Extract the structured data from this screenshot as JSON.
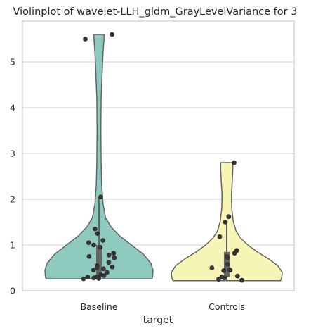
{
  "chart_data": {
    "type": "violin",
    "title": "Violinplot of wavelet-LLH_gldm_GrayLevelVariance for 3",
    "xlabel": "target",
    "ylabel": "",
    "categories": [
      "Baseline",
      "Controls"
    ],
    "ylim": [
      0,
      5.85
    ],
    "yticks": [
      0,
      1,
      2,
      3,
      4,
      5
    ],
    "grid": true,
    "colors": {
      "Baseline": "#8ecbbe",
      "Controls": "#f6f5b6",
      "outline": "#646464",
      "points": "#353535",
      "grid": "#d0d0d0",
      "frame": "#cccccc"
    },
    "series": [
      {
        "category": "Baseline",
        "min": 0.26,
        "max": 5.6,
        "q1": 0.3,
        "median": 0.55,
        "q3": 1.0,
        "whisker_high": 2.05,
        "points": [
          5.6,
          5.5,
          2.05,
          1.35,
          1.25,
          1.1,
          1.05,
          1.0,
          0.95,
          0.82,
          0.78,
          0.75,
          0.72,
          0.62,
          0.55,
          0.52,
          0.5,
          0.48,
          0.45,
          0.4,
          0.35,
          0.33,
          0.3,
          0.3,
          0.28,
          0.27,
          0.26
        ]
      },
      {
        "category": "Controls",
        "min": 0.22,
        "max": 2.8,
        "q1": 0.3,
        "median": 0.55,
        "q3": 0.85,
        "whisker_high": 1.5,
        "points": [
          2.8,
          1.62,
          1.5,
          1.18,
          0.88,
          0.82,
          0.75,
          0.72,
          0.58,
          0.5,
          0.46,
          0.45,
          0.44,
          0.32,
          0.3,
          0.28,
          0.25,
          0.23
        ]
      }
    ]
  }
}
